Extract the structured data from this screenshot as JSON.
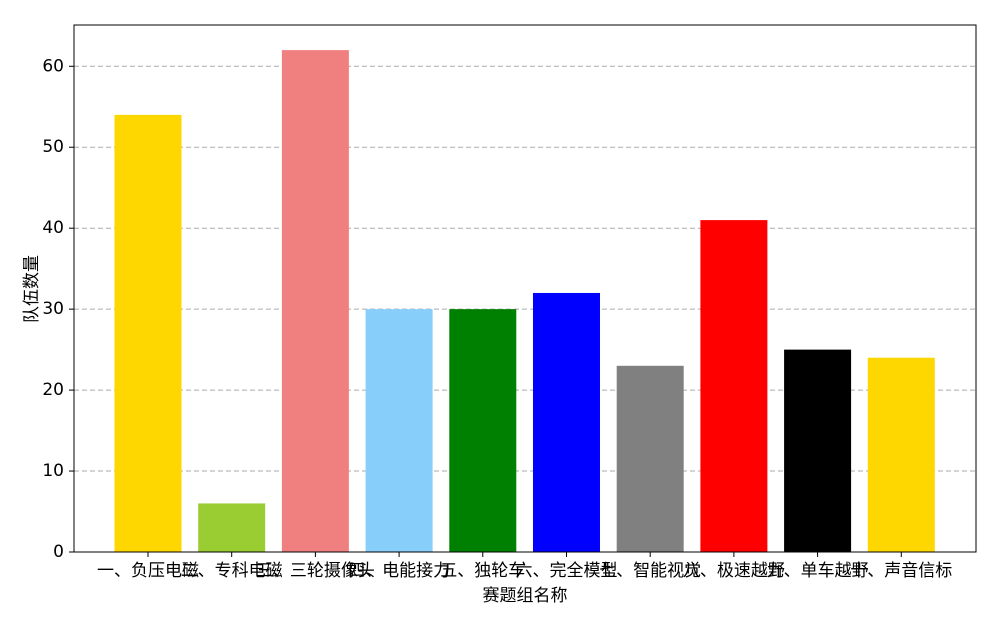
{
  "chart_data": {
    "type": "bar",
    "xlabel": "赛题组名称",
    "ylabel": "队伍数量",
    "categories": [
      "一、负压电磁",
      "二、专科电磁",
      "三、三轮摄像头",
      "四、电能接力",
      "五、独轮车",
      "六、完全模型",
      "七、智能视觉",
      "八、极速越野",
      "九、单车越野",
      "十、声音信标"
    ],
    "values": [
      54,
      6,
      62,
      30,
      30,
      32,
      23,
      41,
      25,
      24
    ],
    "colors": [
      "gold",
      "yellowgreen",
      "lightcoral",
      "lightskyblue",
      "green",
      "blue",
      "gray",
      "red",
      "black",
      "gold"
    ],
    "ylim": [
      0,
      65.1
    ],
    "yticks": [
      0,
      10,
      20,
      30,
      40,
      50,
      60
    ],
    "grid": true
  }
}
